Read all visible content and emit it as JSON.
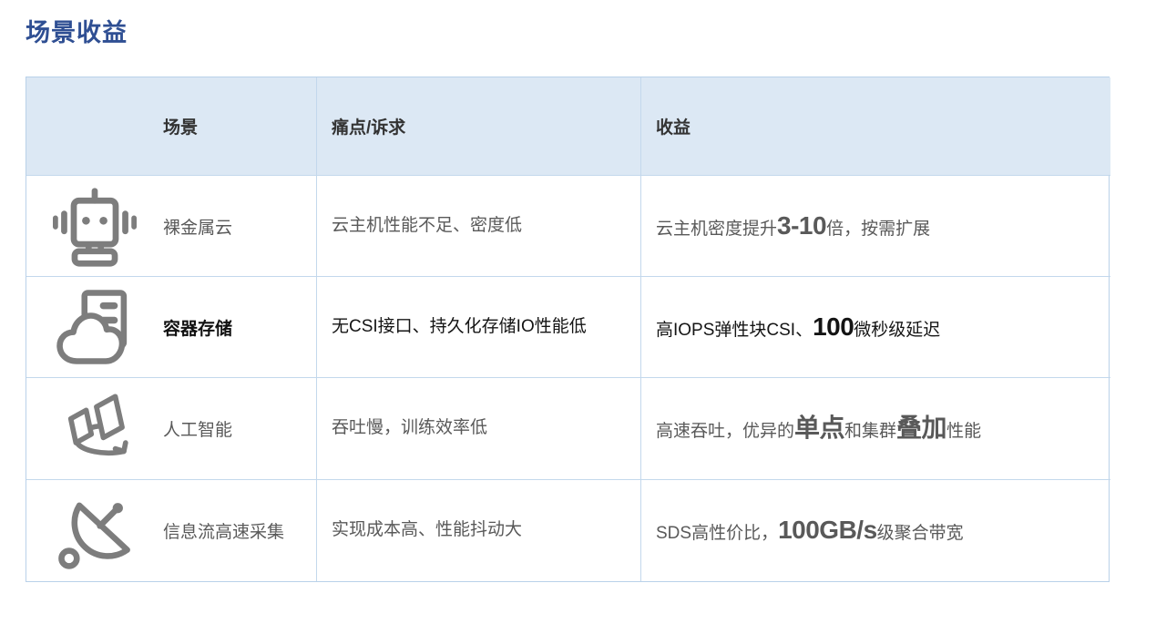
{
  "page": {
    "title": "场景收益"
  },
  "colors": {
    "title_blue": "#2f4f93",
    "header_bg": "#dce8f4",
    "border": "#c3d8ec",
    "text_gray": "#595959",
    "text_dark": "#141414",
    "icon_gray": "#7d7d7d"
  },
  "table": {
    "headers": {
      "scenario": "场景",
      "pain": "痛点/诉求",
      "benefit": "收益"
    },
    "rows": [
      {
        "icon": "robot-icon",
        "scenario": "裸金属云",
        "dark": false,
        "pain": [
          {
            "text": "云主机性能不足、密度低",
            "bold": false
          }
        ],
        "benefit": [
          {
            "text": "云主机密度提升",
            "bold": false
          },
          {
            "text": "3-10",
            "bold": true
          },
          {
            "text": "倍，按需扩展",
            "bold": false
          }
        ]
      },
      {
        "icon": "cloud-server-icon",
        "scenario": "容器存储",
        "dark": true,
        "pain": [
          {
            "text": "无CSI接口、持久化存储IO性能低",
            "bold": false
          }
        ],
        "benefit": [
          {
            "text": "高IOPS弹性块CSI、",
            "bold": false
          },
          {
            "text": "100",
            "bold": true
          },
          {
            "text": "微秒级延迟",
            "bold": false
          }
        ]
      },
      {
        "icon": "ai-panes-icon",
        "scenario": "人工智能",
        "dark": false,
        "pain": [
          {
            "text": "吞吐慢，训练效率低",
            "bold": false
          }
        ],
        "benefit": [
          {
            "text": "高速吞吐，优异的",
            "bold": false
          },
          {
            "text": "单点",
            "bold": true
          },
          {
            "text": "和集群",
            "bold": false
          },
          {
            "text": "叠加",
            "bold": true
          },
          {
            "text": "性能",
            "bold": false
          }
        ]
      },
      {
        "icon": "satellite-dish-icon",
        "scenario": "信息流高速采集",
        "dark": false,
        "pain": [
          {
            "text": "实现成本高、性能抖动大",
            "bold": false
          }
        ],
        "benefit": [
          {
            "text": "SDS高性价比，",
            "bold": false
          },
          {
            "text": "100GB/s",
            "bold": true
          },
          {
            "text": "级聚合带宽",
            "bold": false
          }
        ]
      }
    ]
  }
}
